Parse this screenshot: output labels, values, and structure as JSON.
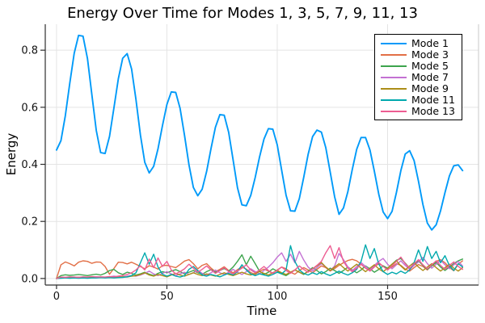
{
  "figure": {
    "background": "#ffffff"
  },
  "chart_data": {
    "type": "line",
    "title": "Energy Over Time for Modes 1, 3, 5, 7, 9, 11, 13",
    "xlabel": "Time",
    "ylabel": "Energy",
    "xlim": [
      -5.1,
      191.2
    ],
    "ylim": [
      -0.023,
      0.891
    ],
    "xticks": [
      0,
      50,
      100,
      150
    ],
    "xtick_labels": [
      "0",
      "50",
      "100",
      "150"
    ],
    "yticks": [
      0.0,
      0.2,
      0.4,
      0.6,
      0.8
    ],
    "ytick_labels": [
      "0.0",
      "0.2",
      "0.4",
      "0.6",
      "0.8"
    ],
    "grid": true,
    "grid_color": "#e4e4e4",
    "spine_color": "#2e2e2e",
    "minor_spine_color": "#c9c9c9",
    "tick_label_color": "#111111",
    "legend_position": "top-right",
    "time": [
      0,
      2,
      4,
      6,
      8,
      10,
      12,
      14,
      16,
      18,
      20,
      22,
      24,
      26,
      28,
      30,
      32,
      34,
      36,
      38,
      40,
      42,
      44,
      46,
      48,
      50,
      52,
      54,
      56,
      58,
      60,
      62,
      64,
      66,
      68,
      70,
      72,
      74,
      76,
      78,
      80,
      82,
      84,
      86,
      88,
      90,
      92,
      94,
      96,
      98,
      100,
      102,
      104,
      106,
      108,
      110,
      112,
      114,
      116,
      118,
      120,
      122,
      124,
      126,
      128,
      130,
      132,
      134,
      136,
      138,
      140,
      142,
      144,
      146,
      148,
      150,
      152,
      154,
      156,
      158,
      160,
      162,
      164,
      166,
      168,
      170,
      172,
      174,
      176,
      178,
      180,
      182,
      184
    ],
    "series": [
      {
        "name": "Mode 1",
        "color": "#009af9",
        "values": [
          0.45,
          0.483,
          0.57,
          0.684,
          0.789,
          0.852,
          0.849,
          0.771,
          0.645,
          0.519,
          0.441,
          0.438,
          0.498,
          0.597,
          0.7,
          0.772,
          0.788,
          0.734,
          0.627,
          0.503,
          0.407,
          0.37,
          0.393,
          0.455,
          0.536,
          0.61,
          0.654,
          0.652,
          0.596,
          0.501,
          0.398,
          0.319,
          0.29,
          0.313,
          0.375,
          0.456,
          0.53,
          0.574,
          0.572,
          0.512,
          0.415,
          0.318,
          0.258,
          0.255,
          0.291,
          0.354,
          0.426,
          0.489,
          0.525,
          0.523,
          0.468,
          0.38,
          0.292,
          0.237,
          0.236,
          0.28,
          0.354,
          0.435,
          0.497,
          0.52,
          0.513,
          0.459,
          0.373,
          0.286,
          0.225,
          0.247,
          0.305,
          0.382,
          0.453,
          0.494,
          0.494,
          0.45,
          0.376,
          0.295,
          0.233,
          0.21,
          0.235,
          0.301,
          0.378,
          0.436,
          0.448,
          0.413,
          0.341,
          0.259,
          0.194,
          0.17,
          0.188,
          0.237,
          0.301,
          0.36,
          0.395,
          0.398,
          0.378
        ]
      },
      {
        "name": "Mode 3",
        "color": "#e26f46",
        "values": [
          0.0,
          0.048,
          0.058,
          0.052,
          0.044,
          0.057,
          0.062,
          0.06,
          0.053,
          0.058,
          0.057,
          0.042,
          0.015,
          0.035,
          0.057,
          0.056,
          0.051,
          0.057,
          0.05,
          0.042,
          0.034,
          0.045,
          0.04,
          0.033,
          0.045,
          0.046,
          0.042,
          0.038,
          0.049,
          0.061,
          0.066,
          0.052,
          0.034,
          0.046,
          0.052,
          0.036,
          0.024,
          0.032,
          0.041,
          0.028,
          0.02,
          0.031,
          0.04,
          0.033,
          0.021,
          0.014,
          0.025,
          0.033,
          0.026,
          0.018,
          0.03,
          0.04,
          0.034,
          0.022,
          0.015,
          0.028,
          0.038,
          0.03,
          0.02,
          0.032,
          0.044,
          0.038,
          0.026,
          0.035,
          0.046,
          0.055,
          0.063,
          0.067,
          0.062,
          0.05,
          0.036,
          0.028,
          0.042,
          0.051,
          0.044,
          0.033,
          0.04,
          0.052,
          0.046,
          0.033,
          0.026,
          0.038,
          0.049,
          0.042,
          0.03,
          0.046,
          0.06,
          0.066,
          0.055,
          0.038,
          0.027,
          0.05,
          0.062
        ]
      },
      {
        "name": "Mode 5",
        "color": "#3da44d",
        "values": [
          0.0,
          0.01,
          0.013,
          0.011,
          0.012,
          0.014,
          0.012,
          0.01,
          0.013,
          0.015,
          0.012,
          0.018,
          0.028,
          0.032,
          0.02,
          0.014,
          0.022,
          0.018,
          0.012,
          0.016,
          0.022,
          0.015,
          0.01,
          0.018,
          0.024,
          0.02,
          0.026,
          0.031,
          0.024,
          0.016,
          0.022,
          0.028,
          0.02,
          0.015,
          0.024,
          0.031,
          0.022,
          0.028,
          0.035,
          0.026,
          0.04,
          0.06,
          0.083,
          0.048,
          0.078,
          0.052,
          0.025,
          0.014,
          0.022,
          0.034,
          0.026,
          0.016,
          0.01,
          0.02,
          0.03,
          0.022,
          0.014,
          0.026,
          0.038,
          0.028,
          0.016,
          0.024,
          0.036,
          0.028,
          0.018,
          0.028,
          0.04,
          0.03,
          0.02,
          0.03,
          0.044,
          0.034,
          0.022,
          0.032,
          0.044,
          0.036,
          0.05,
          0.064,
          0.07,
          0.054,
          0.036,
          0.05,
          0.062,
          0.046,
          0.032,
          0.044,
          0.056,
          0.04,
          0.028,
          0.04,
          0.052,
          0.062,
          0.068
        ]
      },
      {
        "name": "Mode 7",
        "color": "#c371d3",
        "values": [
          0.0,
          0.003,
          0.004,
          0.003,
          0.005,
          0.004,
          0.003,
          0.005,
          0.004,
          0.006,
          0.005,
          0.004,
          0.006,
          0.008,
          0.006,
          0.005,
          0.008,
          0.01,
          0.008,
          0.012,
          0.018,
          0.026,
          0.016,
          0.01,
          0.018,
          0.024,
          0.016,
          0.01,
          0.016,
          0.022,
          0.014,
          0.02,
          0.028,
          0.018,
          0.012,
          0.02,
          0.03,
          0.02,
          0.014,
          0.022,
          0.032,
          0.022,
          0.014,
          0.024,
          0.034,
          0.024,
          0.016,
          0.028,
          0.04,
          0.055,
          0.075,
          0.09,
          0.06,
          0.085,
          0.055,
          0.095,
          0.065,
          0.04,
          0.026,
          0.038,
          0.052,
          0.04,
          0.028,
          0.044,
          0.088,
          0.066,
          0.04,
          0.028,
          0.042,
          0.056,
          0.042,
          0.03,
          0.046,
          0.06,
          0.07,
          0.05,
          0.034,
          0.048,
          0.062,
          0.046,
          0.032,
          0.046,
          0.058,
          0.074,
          0.052,
          0.036,
          0.05,
          0.064,
          0.048,
          0.034,
          0.048,
          0.06,
          0.044
        ]
      },
      {
        "name": "Mode 9",
        "color": "#ac8d18",
        "values": [
          0.0,
          0.002,
          0.003,
          0.002,
          0.003,
          0.004,
          0.003,
          0.002,
          0.004,
          0.003,
          0.005,
          0.004,
          0.003,
          0.005,
          0.004,
          0.006,
          0.005,
          0.008,
          0.01,
          0.014,
          0.02,
          0.012,
          0.008,
          0.014,
          0.01,
          0.006,
          0.012,
          0.018,
          0.012,
          0.008,
          0.014,
          0.02,
          0.014,
          0.01,
          0.016,
          0.012,
          0.008,
          0.014,
          0.02,
          0.014,
          0.01,
          0.016,
          0.022,
          0.016,
          0.012,
          0.018,
          0.024,
          0.018,
          0.012,
          0.02,
          0.028,
          0.02,
          0.014,
          0.022,
          0.03,
          0.022,
          0.016,
          0.024,
          0.034,
          0.044,
          0.056,
          0.04,
          0.028,
          0.04,
          0.052,
          0.038,
          0.026,
          0.038,
          0.05,
          0.036,
          0.024,
          0.036,
          0.048,
          0.034,
          0.024,
          0.036,
          0.05,
          0.062,
          0.044,
          0.03,
          0.044,
          0.056,
          0.04,
          0.028,
          0.04,
          0.052,
          0.038,
          0.026,
          0.038,
          0.05,
          0.036,
          0.026,
          0.038
        ]
      },
      {
        "name": "Mode 11",
        "color": "#00a9ad",
        "values": [
          0.0,
          0.001,
          0.002,
          0.001,
          0.002,
          0.001,
          0.002,
          0.001,
          0.002,
          0.002,
          0.003,
          0.002,
          0.003,
          0.002,
          0.003,
          0.004,
          0.006,
          0.01,
          0.02,
          0.055,
          0.09,
          0.05,
          0.085,
          0.04,
          0.015,
          0.008,
          0.014,
          0.008,
          0.005,
          0.01,
          0.032,
          0.042,
          0.028,
          0.012,
          0.008,
          0.014,
          0.01,
          0.006,
          0.012,
          0.018,
          0.012,
          0.024,
          0.048,
          0.03,
          0.016,
          0.01,
          0.016,
          0.012,
          0.008,
          0.014,
          0.022,
          0.016,
          0.03,
          0.115,
          0.06,
          0.03,
          0.018,
          0.012,
          0.02,
          0.014,
          0.024,
          0.016,
          0.01,
          0.018,
          0.026,
          0.018,
          0.012,
          0.02,
          0.032,
          0.06,
          0.118,
          0.07,
          0.105,
          0.05,
          0.024,
          0.014,
          0.022,
          0.016,
          0.026,
          0.018,
          0.03,
          0.055,
          0.1,
          0.06,
          0.112,
          0.07,
          0.095,
          0.055,
          0.08,
          0.045,
          0.028,
          0.052,
          0.04
        ]
      },
      {
        "name": "Mode 13",
        "color": "#ed5d92",
        "values": [
          0.0,
          0.005,
          0.004,
          0.006,
          0.005,
          0.004,
          0.006,
          0.005,
          0.007,
          0.005,
          0.006,
          0.005,
          0.007,
          0.006,
          0.008,
          0.01,
          0.014,
          0.02,
          0.03,
          0.045,
          0.03,
          0.068,
          0.038,
          0.072,
          0.042,
          0.06,
          0.03,
          0.016,
          0.024,
          0.034,
          0.05,
          0.036,
          0.022,
          0.032,
          0.044,
          0.03,
          0.018,
          0.028,
          0.038,
          0.024,
          0.016,
          0.026,
          0.036,
          0.048,
          0.03,
          0.02,
          0.03,
          0.042,
          0.028,
          0.018,
          0.028,
          0.04,
          0.028,
          0.018,
          0.03,
          0.044,
          0.032,
          0.022,
          0.034,
          0.046,
          0.06,
          0.09,
          0.115,
          0.07,
          0.108,
          0.06,
          0.036,
          0.024,
          0.036,
          0.05,
          0.036,
          0.026,
          0.04,
          0.056,
          0.042,
          0.03,
          0.044,
          0.06,
          0.075,
          0.052,
          0.036,
          0.052,
          0.066,
          0.048,
          0.034,
          0.048,
          0.062,
          0.046,
          0.032,
          0.046,
          0.058,
          0.042,
          0.032
        ]
      }
    ]
  }
}
